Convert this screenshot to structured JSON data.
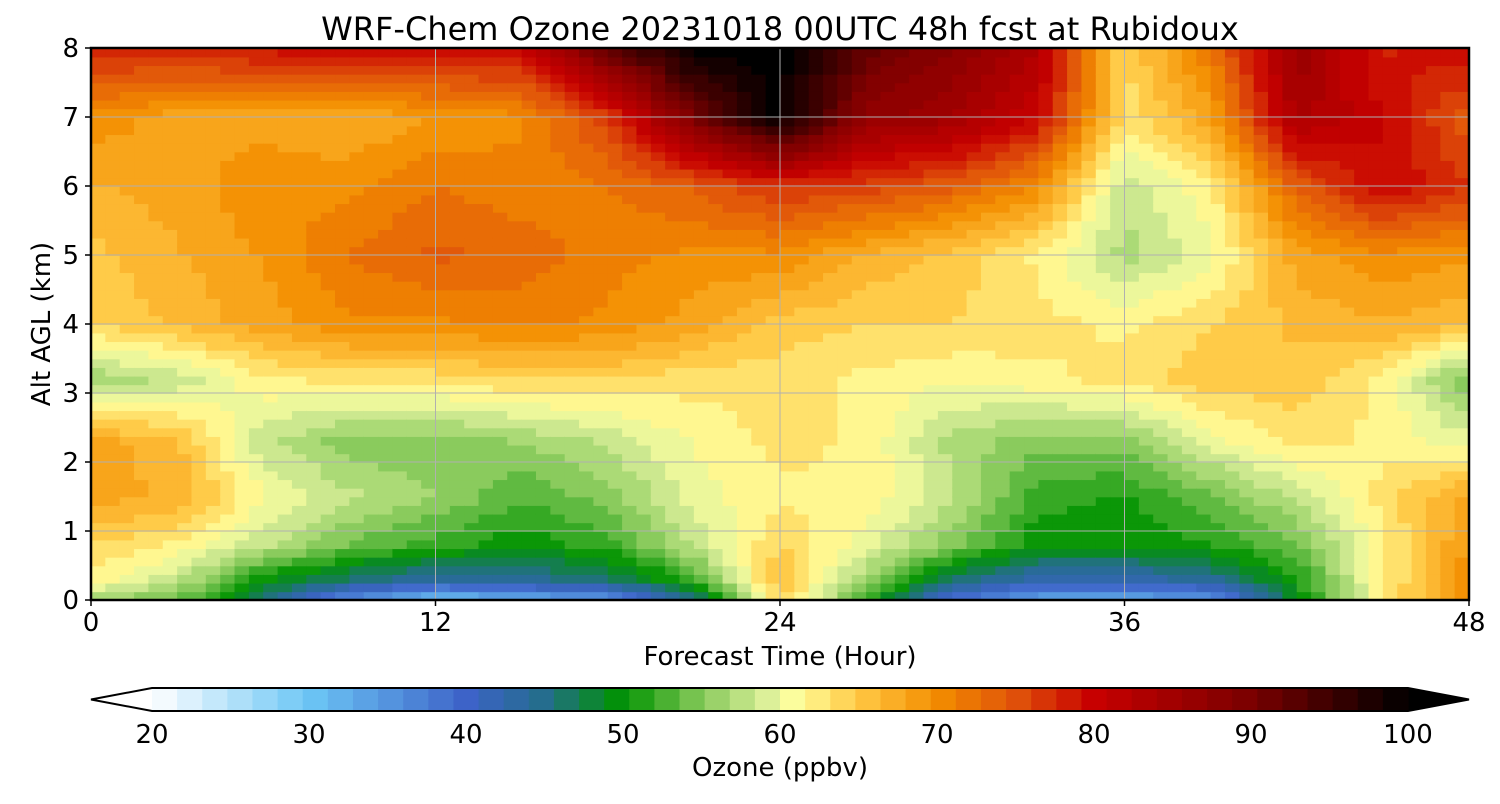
{
  "chart_data": {
    "type": "heatmap",
    "title": "WRF-Chem Ozone  20231018 00UTC 48h fcst at Rubidoux",
    "xlabel": "Forecast Time (Hour)",
    "ylabel": "Alt AGL (km)",
    "xlim": [
      0,
      48
    ],
    "ylim": [
      0,
      8
    ],
    "xticks": [
      0,
      12,
      24,
      36,
      48
    ],
    "yticks": [
      0,
      1,
      2,
      3,
      4,
      5,
      6,
      7,
      8
    ],
    "grid": true,
    "x_hours": [
      0,
      3,
      6,
      9,
      12,
      15,
      18,
      21,
      24,
      27,
      30,
      33,
      36,
      39,
      42,
      45,
      48
    ],
    "y_km": [
      0,
      0.3,
      0.8,
      1.5,
      2.3,
      3.2,
      4.0,
      5.0,
      6.0,
      7.0,
      8.0
    ],
    "ozone_ppbv": [
      [
        56,
        54,
        46,
        35,
        30,
        32,
        34,
        44,
        64,
        52,
        38,
        33,
        33,
        34,
        49,
        62,
        70
      ],
      [
        62,
        58,
        50,
        46,
        43,
        44,
        46,
        52,
        66,
        56,
        46,
        42,
        42,
        44,
        51,
        62,
        70
      ],
      [
        64,
        62,
        58,
        54,
        52,
        50,
        52,
        58,
        64,
        60,
        55,
        50,
        50,
        51,
        54,
        62,
        69
      ],
      [
        68,
        67,
        61,
        58,
        56,
        53,
        55,
        60,
        62,
        62,
        58,
        52,
        51,
        54,
        58,
        63,
        68
      ],
      [
        68,
        66,
        58,
        55,
        55,
        56,
        58,
        61,
        63,
        62,
        57,
        55,
        55,
        60,
        63,
        62,
        60
      ],
      [
        56,
        58,
        62,
        63,
        63,
        64,
        64,
        63,
        63,
        62,
        61,
        62,
        63,
        65,
        65,
        62,
        54
      ],
      [
        64,
        66,
        68,
        70,
        70,
        71,
        70,
        68,
        65,
        64,
        64,
        63,
        62,
        64,
        66,
        67,
        66
      ],
      [
        65,
        67,
        69,
        72,
        74,
        73,
        71,
        70,
        70,
        67,
        65,
        62,
        57,
        60,
        68,
        70,
        69
      ],
      [
        67,
        68,
        70,
        70,
        72,
        71,
        72,
        74,
        77,
        76,
        74,
        70,
        58,
        62,
        74,
        80,
        77
      ],
      [
        70,
        68,
        68,
        67,
        69,
        70,
        76,
        90,
        100,
        87,
        85,
        80,
        63,
        68,
        84,
        80,
        74
      ],
      [
        78,
        78,
        79,
        80,
        79,
        80,
        92,
        100,
        100,
        92,
        88,
        83,
        64,
        72,
        86,
        78,
        80
      ]
    ],
    "colorbar": {
      "label": "Ozone  (ppbv)",
      "min": 20,
      "max": 100,
      "ticks": [
        20,
        30,
        40,
        50,
        60,
        70,
        80,
        90,
        100
      ],
      "extend": "both",
      "colormap_stops": [
        {
          "v": 20,
          "c": "#ffffff"
        },
        {
          "v": 30,
          "c": "#6cc6f5"
        },
        {
          "v": 40,
          "c": "#3d63c8"
        },
        {
          "v": 45,
          "c": "#246d8c"
        },
        {
          "v": 50,
          "c": "#009300"
        },
        {
          "v": 55,
          "c": "#86c95a"
        },
        {
          "v": 59,
          "c": "#d8ee98"
        },
        {
          "v": 61,
          "c": "#ffff9e"
        },
        {
          "v": 65,
          "c": "#ffc844"
        },
        {
          "v": 70,
          "c": "#f38d00"
        },
        {
          "v": 75,
          "c": "#e0520a"
        },
        {
          "v": 80,
          "c": "#c70000"
        },
        {
          "v": 90,
          "c": "#7a0000"
        },
        {
          "v": 100,
          "c": "#000000"
        }
      ]
    }
  }
}
